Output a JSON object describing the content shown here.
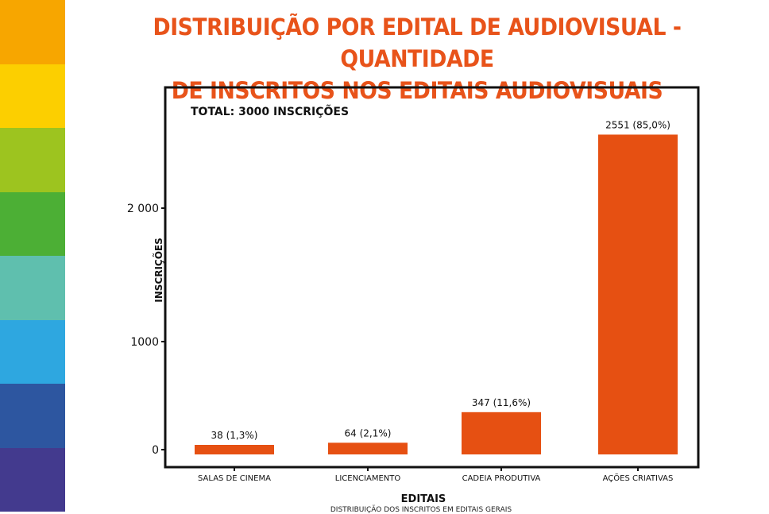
{
  "title_line1": "DISTRIBUIÇÃO POR EDITAL DE AUDIOVISUAL - QUANTIDADE",
  "title_line2": "DE INSCRITOS NOS EDITAIS AUDIOVISUAIS",
  "strip_colors": [
    "#f7a600",
    "#fccf00",
    "#9dc41f",
    "#4caf35",
    "#5fbfae",
    "#2ea7e0",
    "#2d56a0",
    "#433a8e"
  ],
  "chart_data": {
    "type": "bar",
    "annotation": "TOTAL: 3000 INSCRIÇÕES",
    "categories": [
      "SALAS DE CINEMA",
      "LICENCIAMENTO",
      "CADEIA PRODUTIVA",
      "AÇÕES CRIATIVAS"
    ],
    "values": [
      38,
      64,
      347,
      2551
    ],
    "data_labels": [
      "38 (1,3%)",
      "64 (2,1%)",
      "347 (11,6%)",
      "2551 (85,0%)"
    ],
    "xlabel": "EDITAIS",
    "ylabel": "INSCRIÇÕES",
    "yticks": [
      0,
      1000,
      2000
    ],
    "ytick_labels": [
      "0",
      "1000",
      "2 000"
    ],
    "bar_color": "#e65012",
    "grid": false,
    "subtitle": "DISTRIBUIÇÃO DOS INSCRITOS EM EDITAIS GERAIS"
  }
}
